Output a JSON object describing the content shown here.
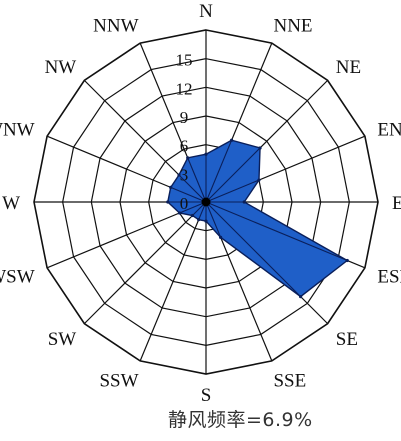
{
  "chart_data": {
    "type": "radar",
    "directions": [
      "N",
      "NNE",
      "NE",
      "ENE",
      "E",
      "ESE",
      "SE",
      "SSE",
      "S",
      "SSW",
      "SW",
      "WSW",
      "W",
      "WNW",
      "NW",
      "NNW"
    ],
    "values": [
      5,
      7,
      8,
      6,
      4,
      16,
      14,
      4,
      2,
      2,
      2,
      3,
      4,
      4,
      4,
      5
    ],
    "radial_ticks": [
      0,
      3,
      6,
      9,
      12,
      15
    ],
    "rmax": 18,
    "grid": true,
    "fill_color": "#1f5fc8",
    "stroke_color": "#0a1f5a",
    "calm_note": "静风频率=6.9%"
  }
}
